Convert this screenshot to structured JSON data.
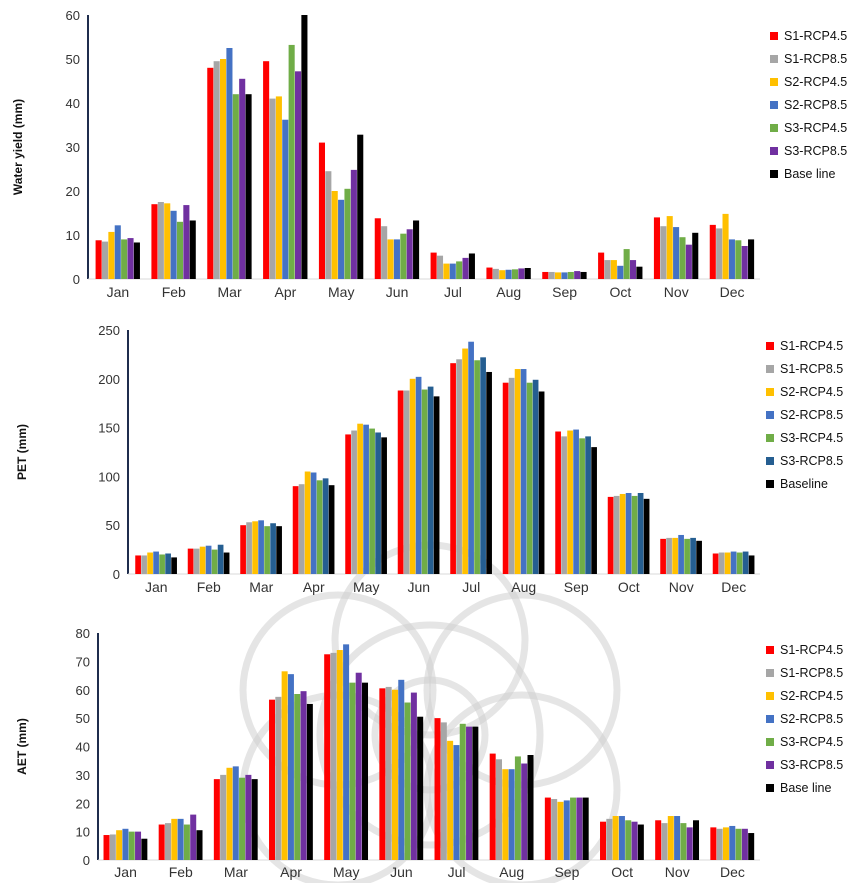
{
  "colors": {
    "S1-RCP4.5": "#ff0000",
    "S1-RCP8.5": "#a6a6a6",
    "S2-RCP4.5": "#ffc000",
    "S2-RCP8.5": "#4472c4",
    "S3-RCP4.5": "#70ad47",
    "S3-RCP4.5_alt": "#70ad47",
    "S3-RCP8.5": "#7030a0",
    "S3-RCP8.5_pet": "#255e91",
    "Base": "#000000"
  },
  "watermark": "faint circular ornament logo behind the lower charts",
  "chart_data": [
    {
      "type": "bar",
      "ylabel": "Water yield (mm)",
      "ylim": [
        0,
        60
      ],
      "yticks": [
        "0",
        "10",
        "20",
        "30",
        "40",
        "50",
        "60"
      ],
      "categories": [
        "Jan",
        "Feb",
        "Mar",
        "Apr",
        "May",
        "Jun",
        "Jul",
        "Aug",
        "Sep",
        "Oct",
        "Nov",
        "Dec"
      ],
      "legend_position": "right",
      "series": [
        {
          "name": "S1-RCP4.5",
          "color": "#ff0000",
          "values": [
            8.8,
            17.0,
            48.0,
            49.5,
            31.0,
            13.8,
            6.0,
            2.6,
            1.6,
            6.0,
            14.0,
            12.3
          ]
        },
        {
          "name": "S1-RCP8.5",
          "color": "#a6a6a6",
          "values": [
            8.5,
            17.5,
            49.5,
            41.0,
            24.5,
            12.0,
            5.3,
            2.3,
            1.6,
            4.3,
            12.0,
            11.5
          ]
        },
        {
          "name": "S2-RCP4.5",
          "color": "#ffc000",
          "values": [
            10.7,
            17.2,
            50.0,
            41.5,
            20.0,
            9.0,
            3.5,
            2.0,
            1.5,
            4.3,
            14.3,
            14.8
          ]
        },
        {
          "name": "S2-RCP8.5",
          "color": "#4472c4",
          "values": [
            12.2,
            15.5,
            52.5,
            36.2,
            18.0,
            9.0,
            3.5,
            2.1,
            1.5,
            3.0,
            11.8,
            9.0
          ]
        },
        {
          "name": "S3-RCP4.5",
          "color": "#70ad47",
          "values": [
            9.0,
            13.0,
            42.0,
            53.2,
            20.5,
            10.3,
            4.0,
            2.2,
            1.6,
            6.8,
            9.5,
            8.8
          ]
        },
        {
          "name": "S3-RCP8.5",
          "color": "#7030a0",
          "values": [
            9.3,
            16.8,
            45.5,
            47.2,
            24.8,
            11.3,
            4.8,
            2.4,
            1.8,
            4.3,
            7.8,
            7.5
          ]
        },
        {
          "name": "Base line",
          "color": "#000000",
          "values": [
            8.3,
            13.3,
            42.0,
            60.0,
            32.8,
            13.3,
            5.8,
            2.5,
            1.6,
            2.8,
            10.5,
            9.0
          ]
        }
      ]
    },
    {
      "type": "bar",
      "ylabel": "PET (mm)",
      "ylim": [
        0,
        250
      ],
      "yticks": [
        "0",
        "50",
        "100",
        "150",
        "200",
        "250"
      ],
      "categories": [
        "Jan",
        "Feb",
        "Mar",
        "Apr",
        "May",
        "Jun",
        "Jul",
        "Aug",
        "Sep",
        "Oct",
        "Nov",
        "Dec"
      ],
      "legend_position": "right",
      "series": [
        {
          "name": "S1-RCP4.5",
          "color": "#ff0000",
          "values": [
            19,
            26,
            50,
            90,
            143,
            188,
            216,
            196,
            146,
            79,
            36,
            21
          ]
        },
        {
          "name": "S1-RCP8.5",
          "color": "#a6a6a6",
          "values": [
            19,
            26,
            53,
            92,
            147,
            188,
            220,
            201,
            141,
            80,
            37,
            22
          ]
        },
        {
          "name": "S2-RCP4.5",
          "color": "#ffc000",
          "values": [
            22,
            28,
            54,
            105,
            154,
            200,
            231,
            210,
            147,
            82,
            37,
            22
          ]
        },
        {
          "name": "S2-RCP8.5",
          "color": "#4472c4",
          "values": [
            23,
            29,
            55,
            104,
            153,
            202,
            238,
            210,
            148,
            83,
            40,
            23
          ]
        },
        {
          "name": "S3-RCP4.5",
          "color": "#70ad47",
          "values": [
            20,
            25,
            49,
            96,
            149,
            189,
            219,
            196,
            139,
            80,
            36,
            22
          ]
        },
        {
          "name": "S3-RCP8.5",
          "color": "#255e91",
          "values": [
            21,
            30,
            52,
            98,
            145,
            192,
            222,
            199,
            141,
            83,
            37,
            23
          ]
        },
        {
          "name": "Baseline",
          "color": "#000000",
          "values": [
            17,
            22,
            49,
            91,
            140,
            182,
            207,
            187,
            130,
            77,
            34,
            19
          ]
        }
      ]
    },
    {
      "type": "bar",
      "ylabel": "AET (mm)",
      "ylim": [
        0,
        80
      ],
      "yticks": [
        "0",
        "10",
        "20",
        "30",
        "40",
        "50",
        "60",
        "70",
        "80"
      ],
      "categories": [
        "Jan",
        "Feb",
        "Mar",
        "Apr",
        "May",
        "Jun",
        "Jul",
        "Aug",
        "Sep",
        "Oct",
        "Nov",
        "Dec"
      ],
      "legend_position": "right",
      "series": [
        {
          "name": "S1-RCP4.5",
          "color": "#ff0000",
          "values": [
            8.8,
            12.5,
            28.5,
            56.5,
            72.5,
            60.5,
            50.0,
            37.5,
            22.0,
            13.5,
            14.0,
            11.5
          ]
        },
        {
          "name": "S1-RCP8.5",
          "color": "#a6a6a6",
          "values": [
            9.0,
            13.0,
            30.0,
            57.5,
            73.0,
            61.0,
            48.5,
            35.5,
            21.5,
            14.5,
            13.0,
            11.0
          ]
        },
        {
          "name": "S2-RCP4.5",
          "color": "#ffc000",
          "values": [
            10.5,
            14.5,
            32.5,
            66.5,
            74.0,
            60.0,
            42.0,
            32.0,
            20.5,
            15.5,
            15.5,
            11.5
          ]
        },
        {
          "name": "S2-RCP8.5",
          "color": "#4472c4",
          "values": [
            11.0,
            14.5,
            33.0,
            65.5,
            76.0,
            63.5,
            40.5,
            32.0,
            21.0,
            15.5,
            15.5,
            12.0
          ]
        },
        {
          "name": "S3-RCP4.5",
          "color": "#70ad47",
          "values": [
            10.0,
            12.5,
            29.0,
            58.5,
            62.5,
            55.5,
            48.0,
            36.5,
            22.0,
            14.0,
            13.0,
            11.0
          ]
        },
        {
          "name": "S3-RCP8.5",
          "color": "#7030a0",
          "values": [
            10.0,
            16.0,
            30.0,
            59.5,
            66.0,
            59.0,
            47.0,
            34.0,
            22.0,
            13.5,
            11.5,
            11.0
          ]
        },
        {
          "name": "Base line",
          "color": "#000000",
          "values": [
            7.5,
            10.5,
            28.5,
            55.0,
            62.5,
            50.5,
            47.0,
            37.0,
            22.0,
            12.5,
            14.0,
            9.5
          ]
        }
      ]
    }
  ]
}
